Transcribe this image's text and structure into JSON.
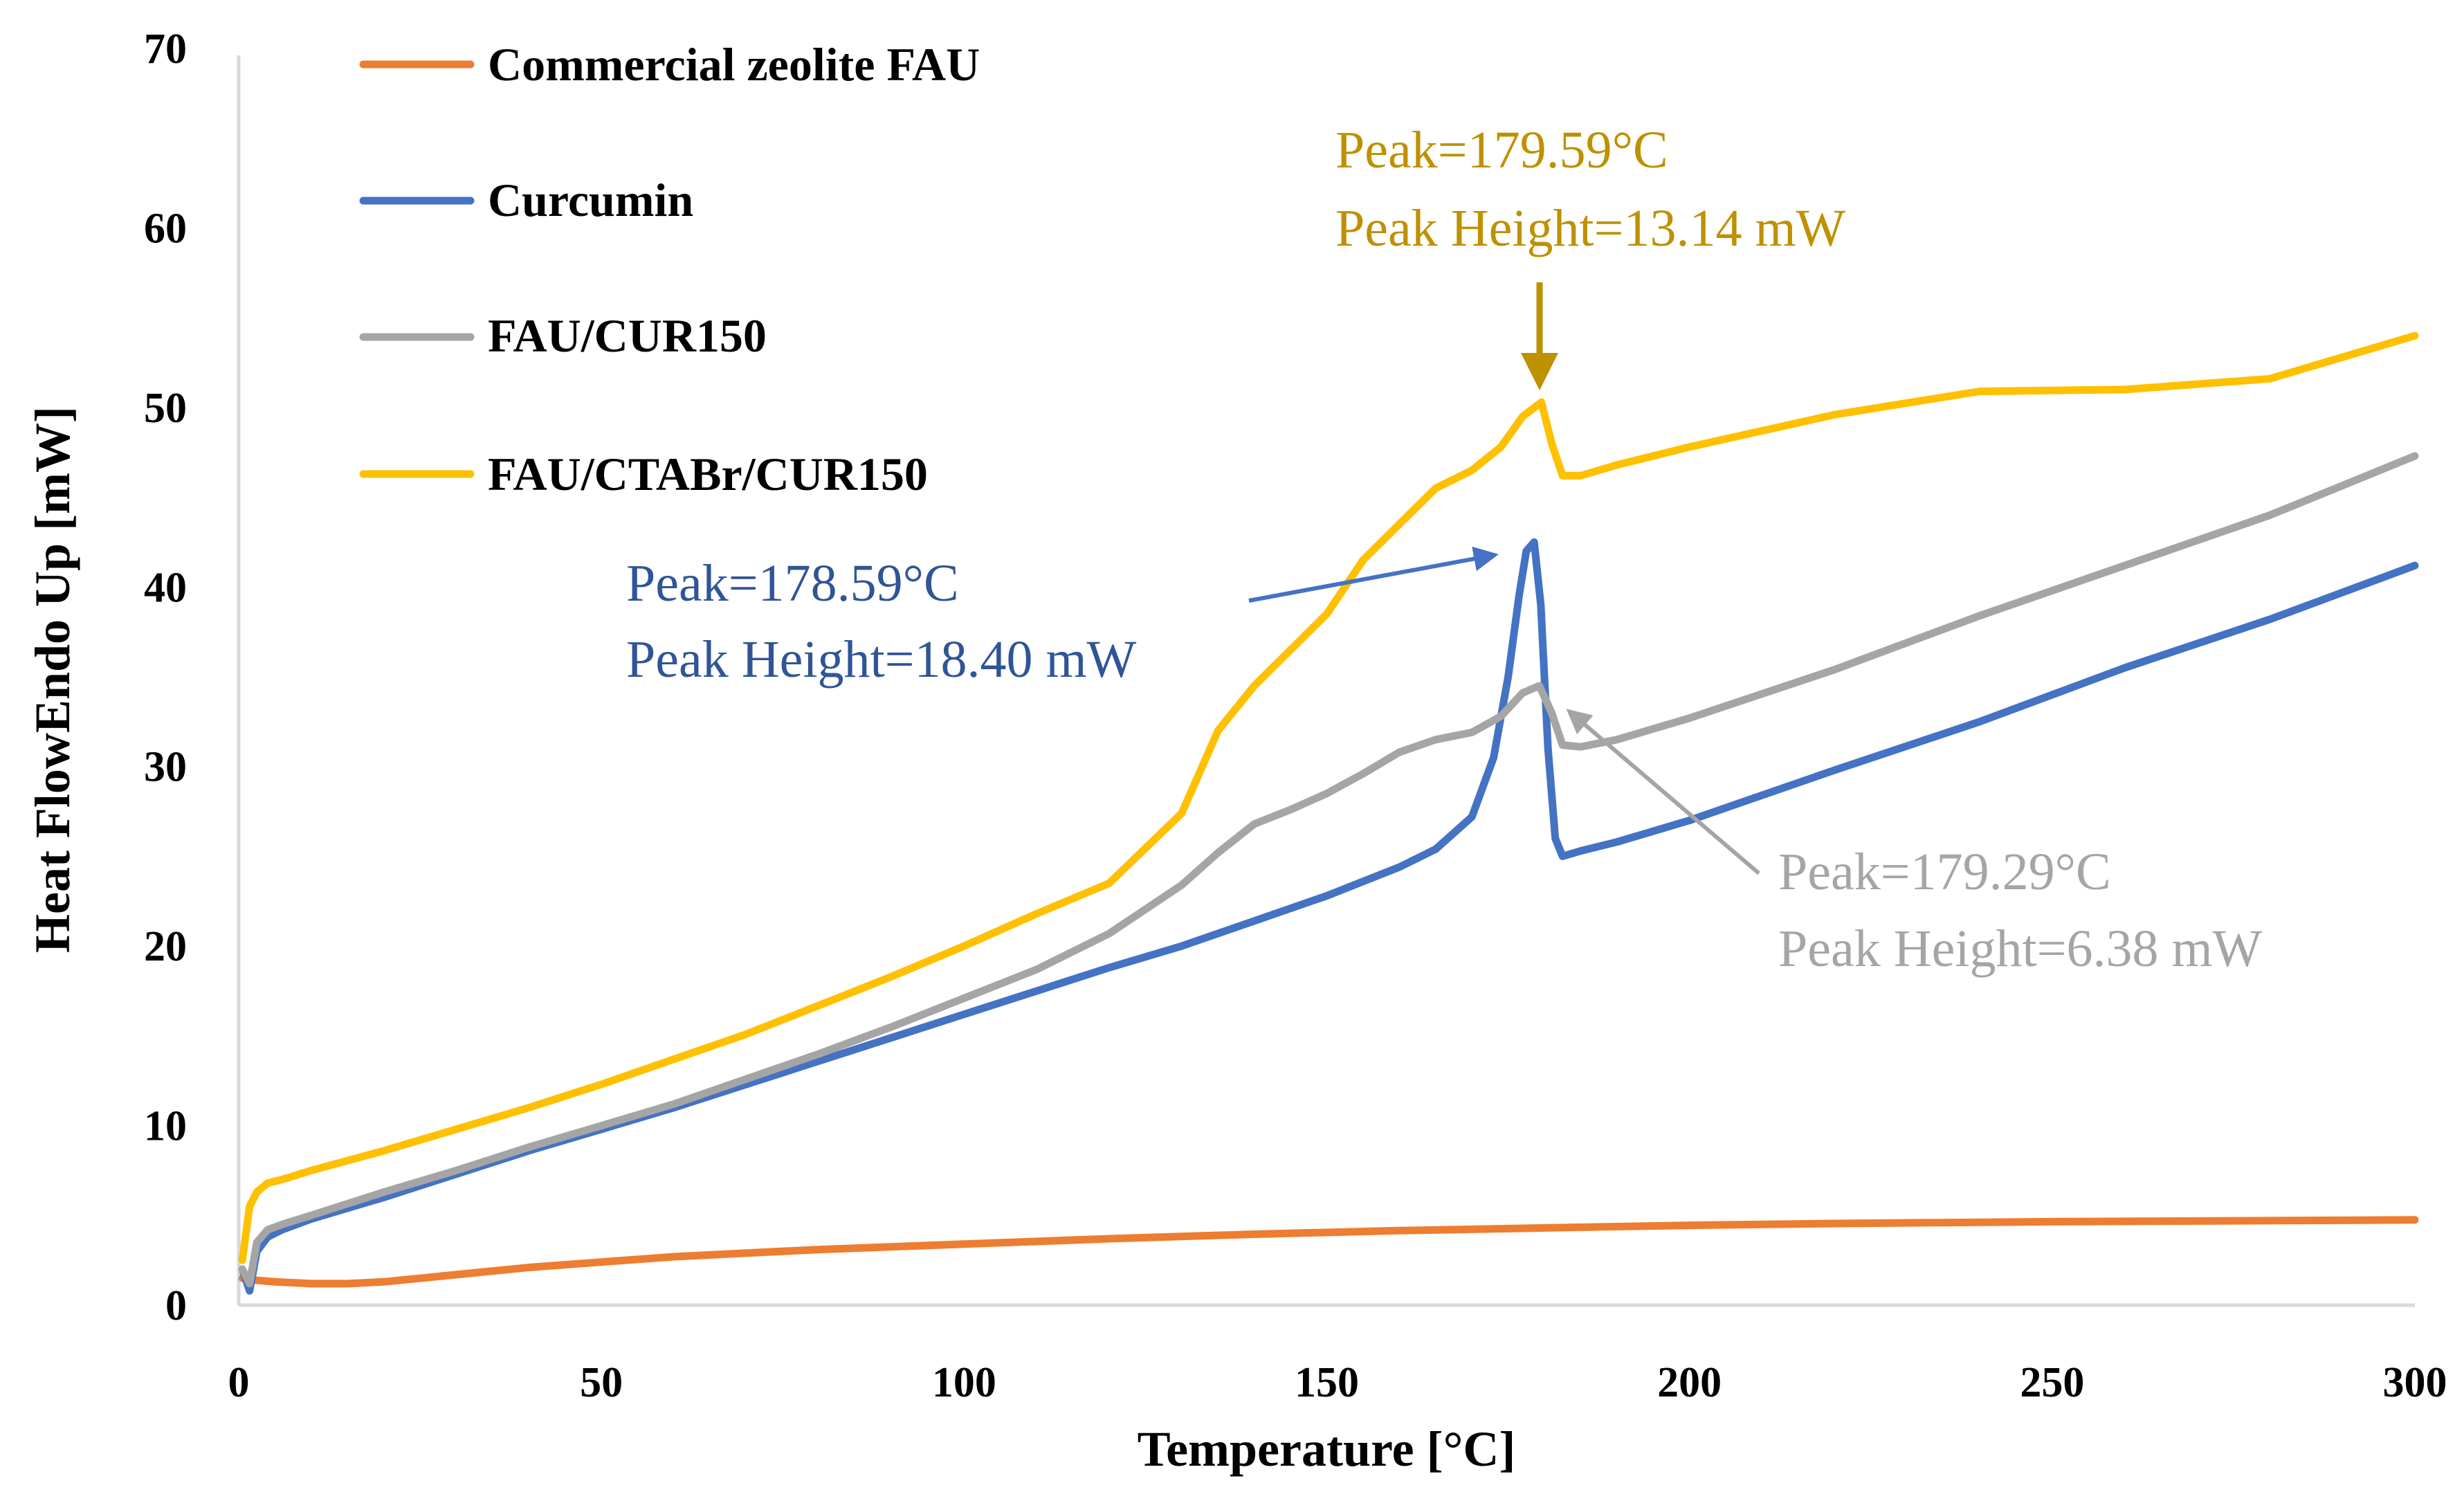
{
  "chart_data": {
    "type": "line",
    "title": "",
    "xlabel": "Temperature [°C]",
    "ylabel": "Heat FlowEndo Up [mW]",
    "xlim": [
      0,
      300
    ],
    "ylim": [
      0,
      70
    ],
    "xticks": [
      0,
      50,
      100,
      150,
      200,
      250,
      300
    ],
    "yticks": [
      0,
      10,
      20,
      30,
      40,
      50,
      60,
      70
    ],
    "grid": false,
    "legend_position": "top-left",
    "series": [
      {
        "name": "Commercial zeolite FAU",
        "color": "#ED7D31",
        "x": [
          0.5,
          2,
          5,
          10,
          15,
          20,
          30,
          40,
          50,
          60,
          70,
          80,
          100,
          120,
          140,
          160,
          180,
          200,
          220,
          250,
          275,
          300
        ],
        "y": [
          1.5,
          1.4,
          1.3,
          1.2,
          1.2,
          1.3,
          1.7,
          2.1,
          2.4,
          2.7,
          2.9,
          3.1,
          3.4,
          3.7,
          3.95,
          4.15,
          4.3,
          4.45,
          4.55,
          4.65,
          4.7,
          4.75
        ]
      },
      {
        "name": "Curcumin",
        "color": "#4472C4",
        "x": [
          0.5,
          1.5,
          2.5,
          4,
          6,
          10,
          20,
          30,
          40,
          50,
          60,
          70,
          80,
          90,
          100,
          110,
          120,
          130,
          140,
          150,
          160,
          165,
          170,
          173,
          175,
          176.5,
          177.5,
          178.59,
          179.5,
          180.5,
          181.5,
          182.5,
          185,
          190,
          200,
          220,
          240,
          260,
          280,
          300
        ],
        "y": [
          2.0,
          0.8,
          3.0,
          3.8,
          4.2,
          4.8,
          6.0,
          7.3,
          8.6,
          9.8,
          11.0,
          12.3,
          13.6,
          14.9,
          16.2,
          17.5,
          18.8,
          20.0,
          21.4,
          22.8,
          24.4,
          25.4,
          27.2,
          30.5,
          35.0,
          39.5,
          42.0,
          42.5,
          39.0,
          31.0,
          26.0,
          25.0,
          25.3,
          25.8,
          27.0,
          29.8,
          32.5,
          35.5,
          38.2,
          41.2
        ]
      },
      {
        "name": "FAU/CUR150",
        "color": "#A5A5A5",
        "x": [
          0.5,
          1.5,
          2.5,
          4,
          6,
          10,
          20,
          30,
          40,
          50,
          60,
          70,
          80,
          90,
          100,
          110,
          120,
          130,
          135,
          140,
          145,
          150,
          155,
          160,
          165,
          170,
          174,
          177,
          179.29,
          181,
          182.5,
          185,
          190,
          200,
          220,
          240,
          260,
          280,
          300
        ],
        "y": [
          2.0,
          1.2,
          3.5,
          4.2,
          4.5,
          5.0,
          6.3,
          7.5,
          8.8,
          10.0,
          11.2,
          12.6,
          14.0,
          15.5,
          17.1,
          18.7,
          20.7,
          23.4,
          25.2,
          26.8,
          27.6,
          28.5,
          29.6,
          30.8,
          31.5,
          31.9,
          32.8,
          34.1,
          34.5,
          33.0,
          31.2,
          31.1,
          31.5,
          32.7,
          35.4,
          38.4,
          41.2,
          44.0,
          47.3
        ]
      },
      {
        "name": "FAU/CTABr/CUR150",
        "color": "#FFC000",
        "x": [
          0.5,
          1.5,
          2.5,
          4,
          6,
          10,
          20,
          30,
          40,
          50,
          60,
          70,
          80,
          90,
          100,
          110,
          120,
          130,
          135,
          140,
          145,
          150,
          155,
          160,
          165,
          170,
          174,
          177,
          179.59,
          181,
          182.5,
          185,
          190,
          200,
          220,
          240,
          260,
          280,
          300
        ],
        "y": [
          2.5,
          5.5,
          6.3,
          6.8,
          7.0,
          7.5,
          8.6,
          9.8,
          11.0,
          12.3,
          13.7,
          15.1,
          16.7,
          18.3,
          20.0,
          21.8,
          23.5,
          27.4,
          32.0,
          34.5,
          36.5,
          38.5,
          41.5,
          43.5,
          45.5,
          46.5,
          47.8,
          49.5,
          50.3,
          48.0,
          46.2,
          46.2,
          46.8,
          47.8,
          49.6,
          50.9,
          51.0,
          51.6,
          54.0
        ]
      }
    ],
    "annotations": [
      {
        "id": "yellow",
        "line1": "Peak=179.59°C",
        "line2": "Peak Height=13.14 mW",
        "color": "#BF9000",
        "peak_x": 179.59,
        "peak_y": 50.3
      },
      {
        "id": "blue",
        "line1": "Peak=178.59°C",
        "line2": "Peak Height=18.40 mW",
        "color": "#2F5597",
        "peak_x": 178.59,
        "peak_y": 42.5
      },
      {
        "id": "gray",
        "line1": "Peak=179.29°C",
        "line2": "Peak Height=6.38 mW",
        "color": "#A5A5A5",
        "peak_x": 179.29,
        "peak_y": 34.5
      }
    ]
  }
}
